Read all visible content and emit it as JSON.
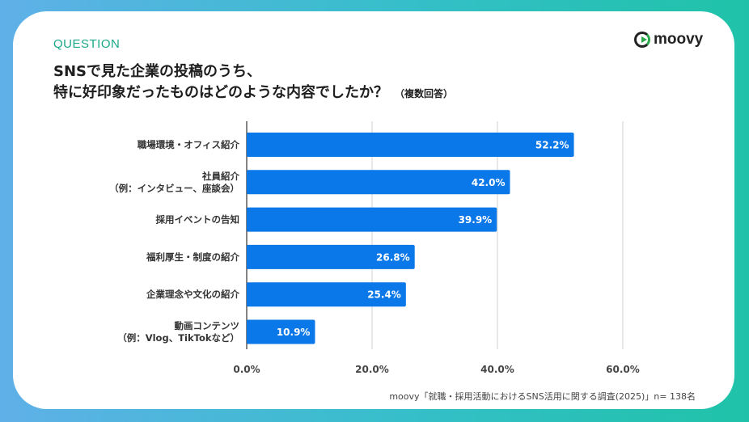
{
  "header": {
    "question_label": "QUESTION",
    "title_line1": "SNSで見た企業の投稿のうち、",
    "title_line2": "特に好印象だったものはどのような内容でしたか？",
    "title_note": "（複数回答）"
  },
  "logo": {
    "text": "moovy",
    "icon": "play-circle-icon"
  },
  "source": "moovy「就職・採用活動におけるSNS活用に関する調査(2025)」n= 138名",
  "colors": {
    "bar": "#0a78e8",
    "title": "#1e1e1e",
    "accent": "#1aa889",
    "grid": "#d0d0d0"
  },
  "chart_data": {
    "type": "bar",
    "orientation": "horizontal",
    "categories": [
      [
        "職場環境・オフィス紹介"
      ],
      [
        "社員紹介",
        "（例：インタビュー、座談会）"
      ],
      [
        "採用イベントの告知"
      ],
      [
        "福利厚生・制度の紹介"
      ],
      [
        "企業理念や文化の紹介"
      ],
      [
        "動画コンテンツ",
        "（例：Vlog、TikTokなど）"
      ]
    ],
    "values": [
      52.2,
      42.0,
      39.9,
      26.8,
      25.4,
      10.9
    ],
    "value_labels": [
      "52.2%",
      "42.0%",
      "39.9%",
      "26.8%",
      "25.4%",
      "10.9%"
    ],
    "xlim": [
      0,
      60
    ],
    "xticks": [
      0,
      20,
      40,
      60
    ],
    "xtick_labels": [
      "0.0%",
      "20.0%",
      "40.0%",
      "60.0%"
    ],
    "grid": true,
    "title": "",
    "xlabel": "",
    "ylabel": ""
  }
}
